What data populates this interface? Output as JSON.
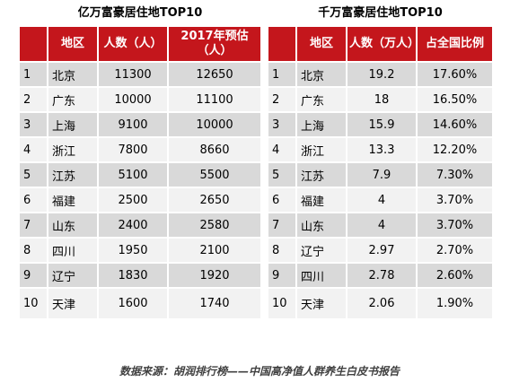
{
  "left": {
    "title": "亿万富豪居住地TOP10",
    "headers": [
      "",
      "地区",
      "人数（人）",
      "2017年预估（人）"
    ],
    "rows": [
      [
        "1",
        "北京",
        "11300",
        "12650"
      ],
      [
        "2",
        "广东",
        "10000",
        "11100"
      ],
      [
        "3",
        "上海",
        "9100",
        "10000"
      ],
      [
        "4",
        "浙江",
        "7800",
        "8660"
      ],
      [
        "5",
        "江苏",
        "5100",
        "5500"
      ],
      [
        "6",
        "福建",
        "2500",
        "2650"
      ],
      [
        "7",
        "山东",
        "2400",
        "2580"
      ],
      [
        "8",
        "四川",
        "1950",
        "2100"
      ],
      [
        "9",
        "辽宁",
        "1830",
        "1920"
      ],
      [
        "10",
        "天津",
        "1600",
        "1740"
      ]
    ]
  },
  "right": {
    "title": "千万富豪居住地TOP10",
    "headers": [
      "",
      "地区",
      "人数（万人）",
      "占全国比例"
    ],
    "rows": [
      [
        "1",
        "北京",
        "19.2",
        "17.60%"
      ],
      [
        "2",
        "广东",
        "18",
        "16.50%"
      ],
      [
        "3",
        "上海",
        "15.9",
        "14.60%"
      ],
      [
        "4",
        "浙江",
        "13.3",
        "12.20%"
      ],
      [
        "5",
        "江苏",
        "7.9",
        "7.30%"
      ],
      [
        "6",
        "福建",
        "4",
        "3.70%"
      ],
      [
        "7",
        "山东",
        "4",
        "3.70%"
      ],
      [
        "8",
        "辽宁",
        "2.97",
        "2.70%"
      ],
      [
        "9",
        "四川",
        "2.78",
        "2.60%"
      ],
      [
        "10",
        "天津",
        "2.06",
        "1.90%"
      ]
    ]
  },
  "source": "数据来源：胡润排行榜——中国高净值人群养生白皮书报告"
}
